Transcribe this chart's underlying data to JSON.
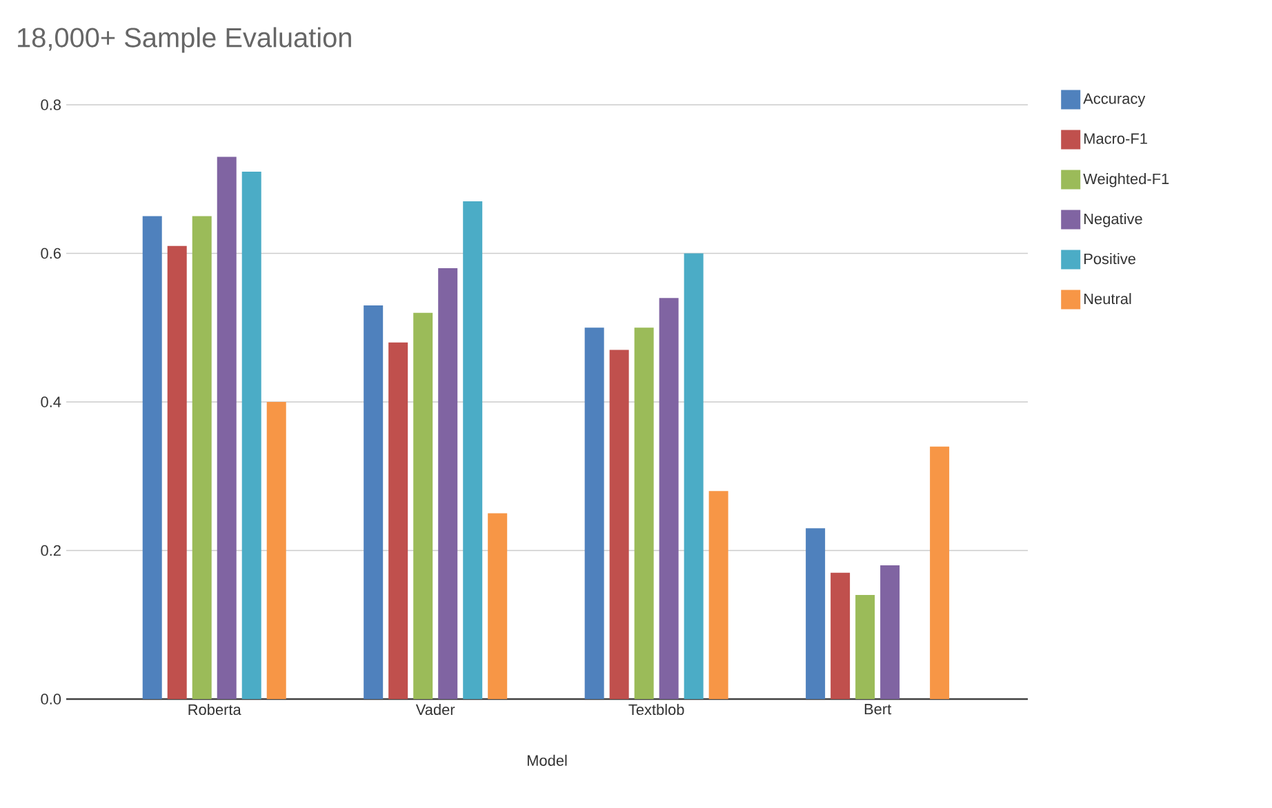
{
  "chart_data": {
    "type": "bar",
    "title": "18,000+ Sample Evaluation",
    "xlabel": "Model",
    "categories": [
      "Roberta",
      "Vader",
      "Textblob",
      "Bert"
    ],
    "series": [
      {
        "name": "Accuracy",
        "color": "#4f81bd",
        "values": [
          0.65,
          0.53,
          0.5,
          0.23
        ]
      },
      {
        "name": "Macro-F1",
        "color": "#c0504d",
        "values": [
          0.61,
          0.48,
          0.47,
          0.17
        ]
      },
      {
        "name": "Weighted-F1",
        "color": "#9bbb59",
        "values": [
          0.65,
          0.52,
          0.5,
          0.14
        ]
      },
      {
        "name": "Negative",
        "color": "#8064a2",
        "values": [
          0.73,
          0.58,
          0.54,
          0.18
        ]
      },
      {
        "name": "Positive",
        "color": "#4bacc6",
        "values": [
          0.71,
          0.67,
          0.6,
          null
        ]
      },
      {
        "name": "Neutral",
        "color": "#f79646",
        "values": [
          0.4,
          0.25,
          0.28,
          0.34
        ]
      }
    ],
    "ylim": [
      0,
      0.8
    ],
    "yticks": [
      {
        "value": 0,
        "label": "0.0"
      },
      0.2,
      0.4,
      0.6,
      0.8
    ],
    "grid": "y",
    "legend": "right"
  }
}
